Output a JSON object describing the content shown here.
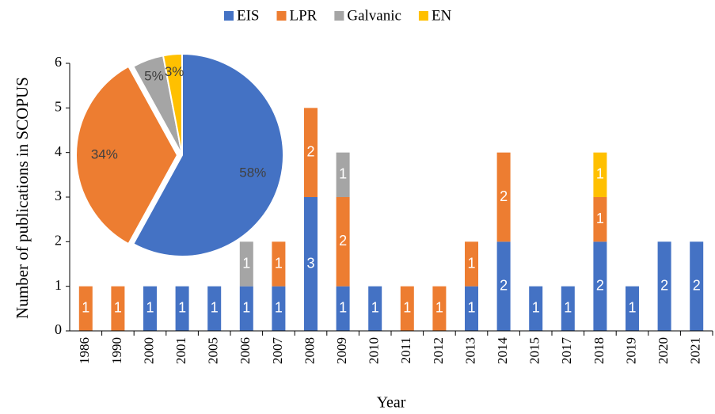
{
  "chart_data": [
    {
      "type": "bar",
      "x_label": "Year",
      "y_label": "Number of publications in SCOPUS",
      "categories": [
        "1986",
        "1990",
        "2000",
        "2001",
        "2005",
        "2006",
        "2007",
        "2008",
        "2009",
        "2010",
        "2011",
        "2012",
        "2013",
        "2014",
        "2015",
        "2017",
        "2018",
        "2019",
        "2020",
        "2021"
      ],
      "series": [
        {
          "name": "EIS",
          "color": "#4472c4",
          "values": [
            0,
            0,
            1,
            1,
            1,
            1,
            1,
            3,
            1,
            1,
            0,
            0,
            1,
            2,
            1,
            1,
            2,
            1,
            2,
            2
          ]
        },
        {
          "name": "LPR",
          "color": "#ed7d31",
          "values": [
            1,
            1,
            0,
            0,
            0,
            0,
            1,
            2,
            2,
            0,
            1,
            1,
            1,
            2,
            0,
            0,
            1,
            0,
            0,
            0
          ]
        },
        {
          "name": "Galvanic",
          "color": "#a5a5a5",
          "values": [
            0,
            0,
            0,
            0,
            0,
            1,
            0,
            0,
            1,
            0,
            0,
            0,
            0,
            0,
            0,
            0,
            0,
            0,
            0,
            0
          ]
        },
        {
          "name": "EN",
          "color": "#ffc000",
          "values": [
            0,
            0,
            0,
            0,
            0,
            0,
            0,
            0,
            0,
            0,
            0,
            0,
            0,
            0,
            0,
            0,
            1,
            0,
            0,
            0
          ]
        }
      ],
      "stacked": true,
      "ylim": [
        0,
        6
      ],
      "yticks": [
        0,
        1,
        2,
        3,
        4,
        5,
        6
      ],
      "grid": false,
      "legend": "top"
    },
    {
      "type": "pie",
      "values": [
        58,
        34,
        5,
        3
      ],
      "value_labels": [
        "58%",
        "34%",
        "5%",
        "3%"
      ],
      "colors": [
        "#4472c4",
        "#ed7d31",
        "#a5a5a5",
        "#ffc000"
      ]
    }
  ]
}
